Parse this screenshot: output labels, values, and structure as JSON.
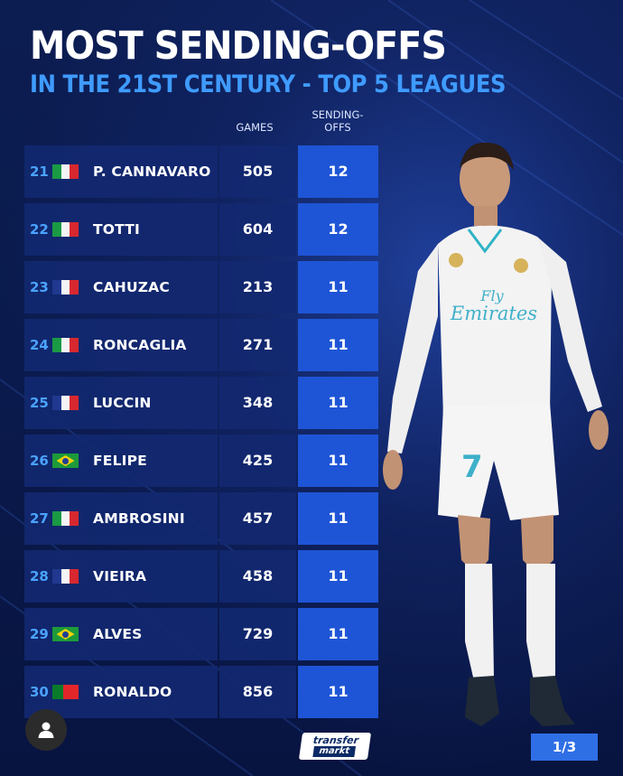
{
  "title": "MOST SENDING-OFFS",
  "subtitle": "IN THE 21ST CENTURY - TOP 5 LEAGUES",
  "columns": {
    "games": "GAMES",
    "sending_offs_line1": "SENDING-",
    "sending_offs_line2": "OFFS"
  },
  "rows": [
    {
      "rank": "21",
      "flag": "italy",
      "name": "P. CANNAVARO",
      "games": "505",
      "sending_offs": "12"
    },
    {
      "rank": "22",
      "flag": "italy",
      "name": "TOTTI",
      "games": "604",
      "sending_offs": "12"
    },
    {
      "rank": "23",
      "flag": "france",
      "name": "CAHUZAC",
      "games": "213",
      "sending_offs": "11"
    },
    {
      "rank": "24",
      "flag": "italy",
      "name": "RONCAGLIA",
      "games": "271",
      "sending_offs": "11"
    },
    {
      "rank": "25",
      "flag": "france",
      "name": "LUCCIN",
      "games": "348",
      "sending_offs": "11"
    },
    {
      "rank": "26",
      "flag": "brazil",
      "name": "FELIPE",
      "games": "425",
      "sending_offs": "11"
    },
    {
      "rank": "27",
      "flag": "italy",
      "name": "AMBROSINI",
      "games": "457",
      "sending_offs": "11"
    },
    {
      "rank": "28",
      "flag": "france",
      "name": "VIEIRA",
      "games": "458",
      "sending_offs": "11"
    },
    {
      "rank": "29",
      "flag": "brazil",
      "name": "ALVES",
      "games": "729",
      "sending_offs": "11"
    },
    {
      "rank": "30",
      "flag": "portugal",
      "name": "RONALDO",
      "games": "856",
      "sending_offs": "11"
    }
  ],
  "player_shirt": {
    "sponsor_line1": "Fly",
    "sponsor_line2": "Emirates",
    "number": "7"
  },
  "logo": {
    "line1": "transfer",
    "line2": "markt"
  },
  "page_indicator": "1/3",
  "colors": {
    "background": "#0b1a4a",
    "accent_blue": "#3f9bff",
    "sending_offs_cell": "#1e55d6",
    "row_cell": "#12286f"
  },
  "icons": {
    "avatar": "user-icon"
  }
}
